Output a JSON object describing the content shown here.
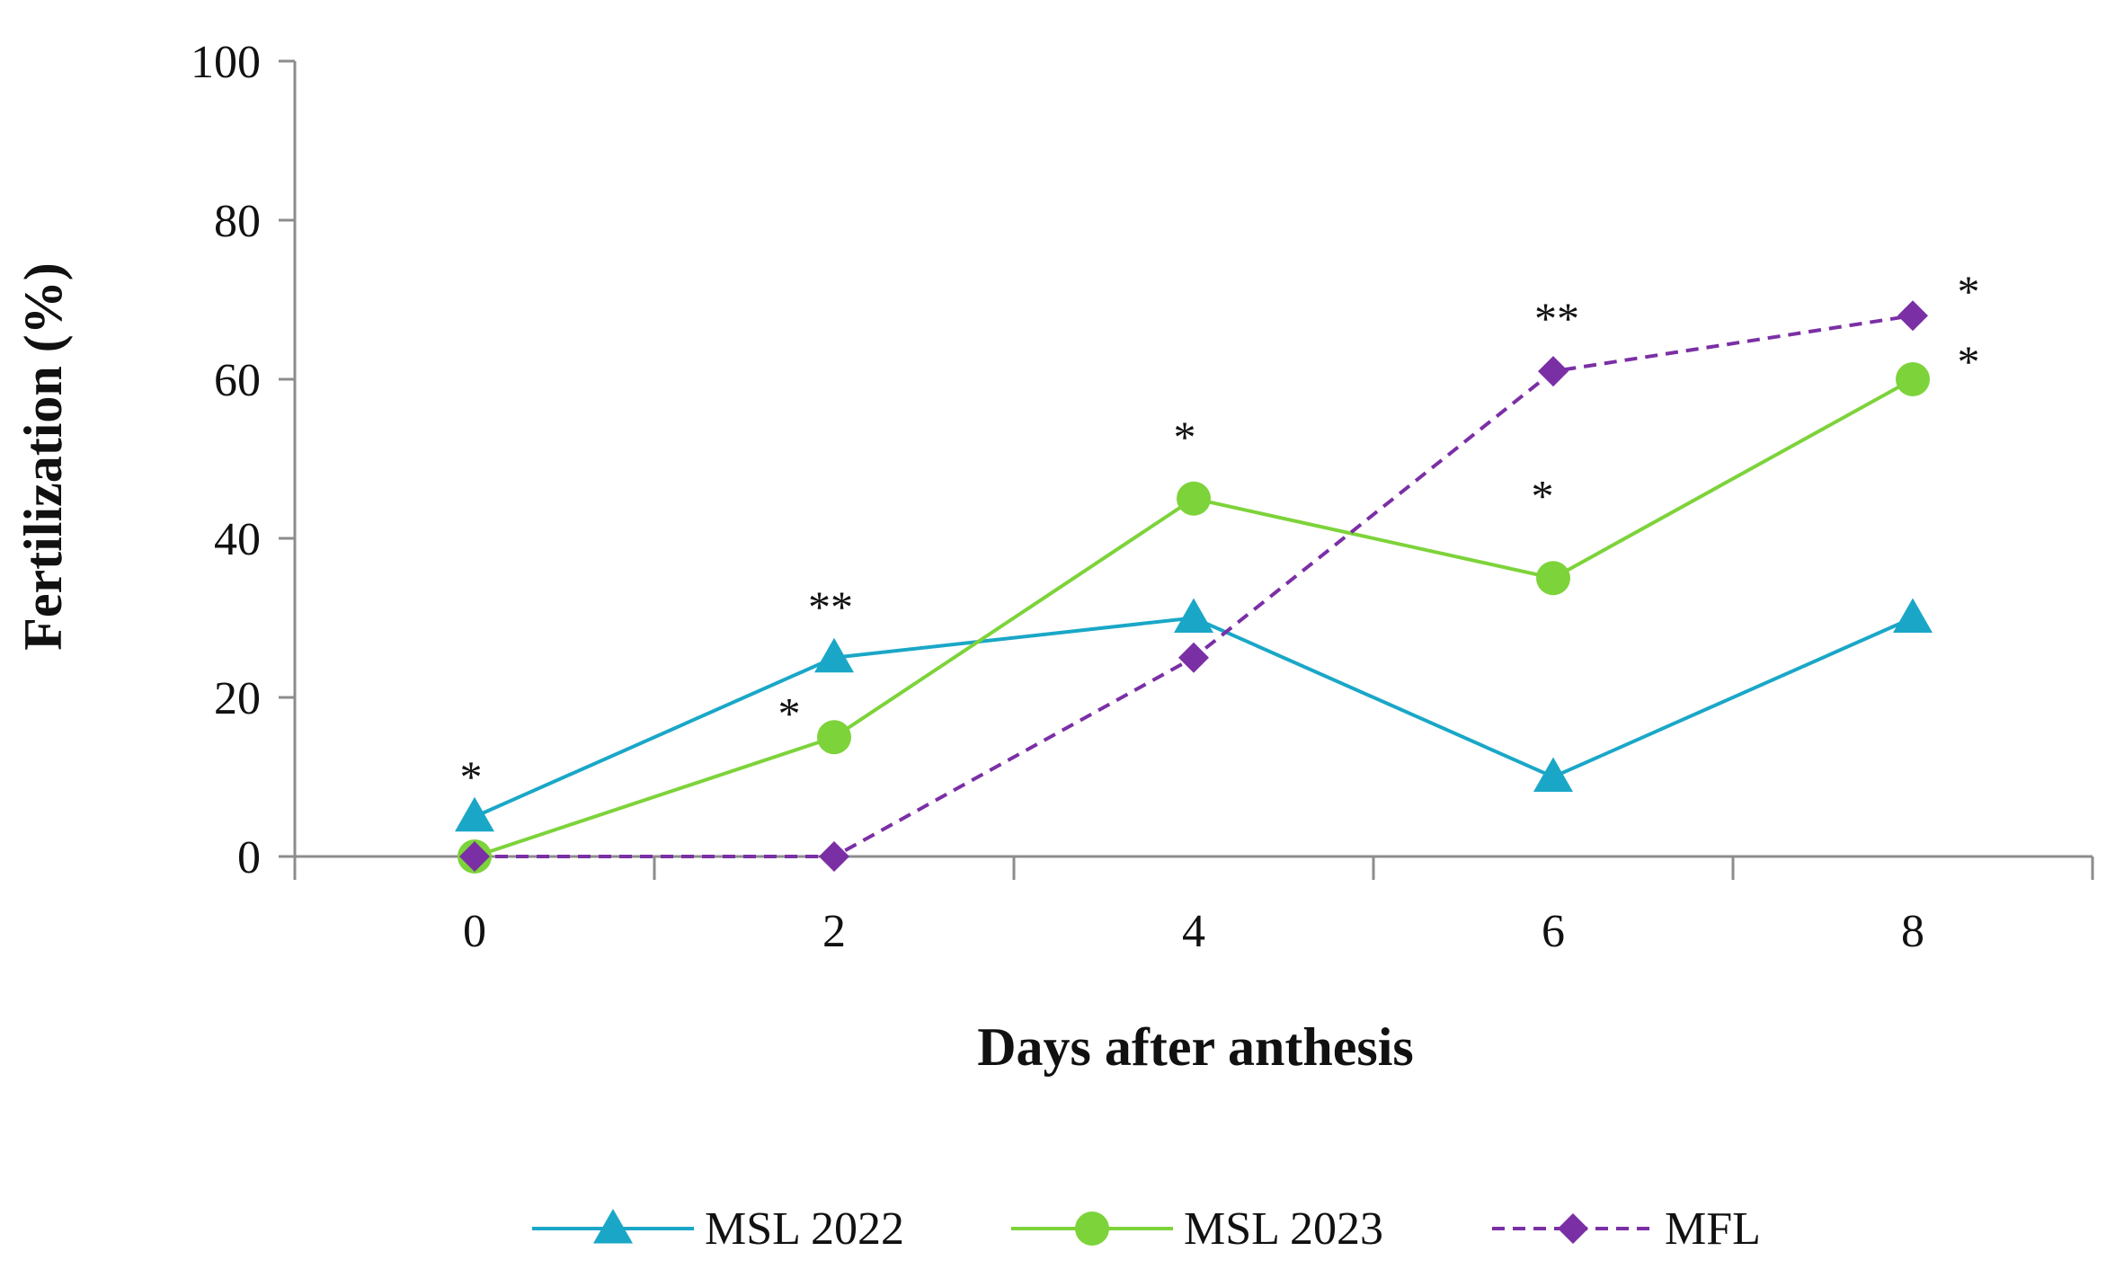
{
  "chart_data": {
    "type": "line",
    "title": "",
    "xlabel": "Days after anthesis",
    "ylabel": "Fertilization (%)",
    "x": [
      0,
      2,
      4,
      6,
      8
    ],
    "xticks": [
      "0",
      "2",
      "4",
      "6",
      "8"
    ],
    "yticks": [
      "0",
      "20",
      "40",
      "60",
      "80",
      "100"
    ],
    "ylim": [
      0,
      100
    ],
    "grid": false,
    "legend_position": "bottom",
    "series": [
      {
        "name": "MSL 2022",
        "values": [
          5,
          25,
          30,
          10,
          30
        ],
        "color": "#1aa7c7",
        "marker": "triangle",
        "dash": "solid",
        "annotations": [
          "*",
          "**",
          "",
          "",
          ""
        ]
      },
      {
        "name": "MSL 2023",
        "values": [
          0,
          15,
          45,
          35,
          60
        ],
        "color": "#7dd33a",
        "marker": "circle",
        "dash": "solid",
        "annotations": [
          "",
          "*",
          "*",
          "*",
          "*"
        ]
      },
      {
        "name": "MFL",
        "values": [
          0,
          0,
          25,
          61,
          68
        ],
        "color": "#7b2fa5",
        "marker": "diamond",
        "dash": "dashed",
        "annotations": [
          "",
          "",
          "",
          "**",
          "*"
        ]
      }
    ]
  }
}
